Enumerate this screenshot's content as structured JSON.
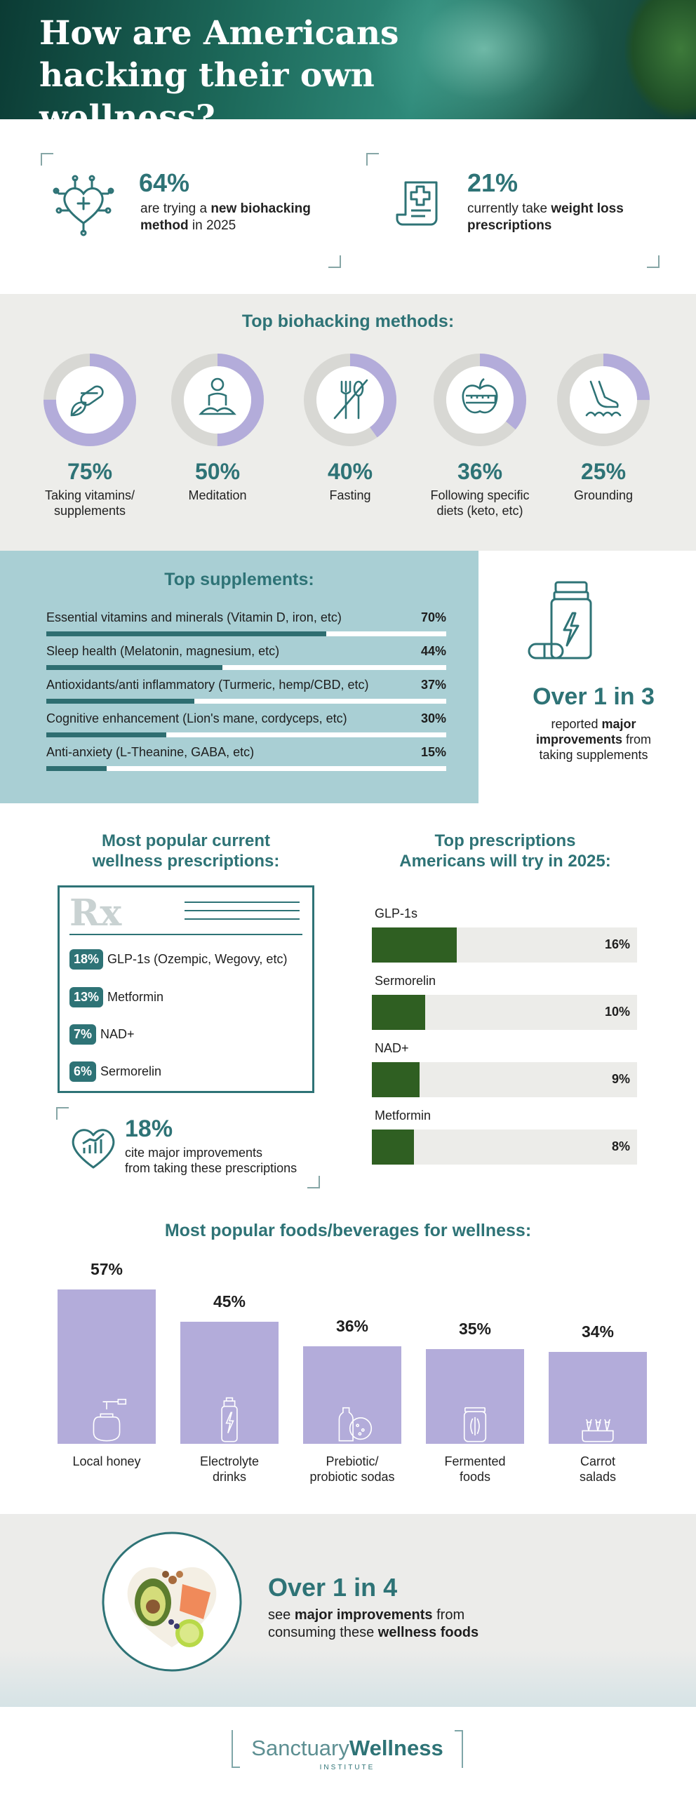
{
  "hero": {
    "title": "How are Americans hacking their own wellness?"
  },
  "top_stats": [
    {
      "value": "64%",
      "text_pre": "are trying a ",
      "text_bold": "new biohacking method",
      "text_post": " in 2025",
      "icon": "heart-circuit-icon"
    },
    {
      "value": "21%",
      "text_pre": "currently take ",
      "text_bold": "weight loss prescriptions",
      "text_post": "",
      "icon": "prescription-scroll-icon"
    }
  ],
  "methods": {
    "title": "Top biohacking methods:",
    "items": [
      {
        "value": "75%",
        "label": "Taking vitamins/ supplements",
        "icon": "pill-leaf-icon"
      },
      {
        "value": "50%",
        "label": "Meditation",
        "icon": "meditation-icon"
      },
      {
        "value": "40%",
        "label": "Fasting",
        "icon": "fork-spoon-crossed-icon"
      },
      {
        "value": "36%",
        "label": "Following specific diets (keto, etc)",
        "icon": "apple-tape-icon"
      },
      {
        "value": "25%",
        "label": "Grounding",
        "icon": "foot-grass-icon"
      }
    ]
  },
  "supplements": {
    "title": "Top supplements:",
    "items": [
      {
        "label": "Essential vitamins and minerals (Vitamin D, iron, etc)",
        "value": "70%"
      },
      {
        "label": "Sleep health (Melatonin, magnesium, etc)",
        "value": "44%"
      },
      {
        "label": "Antioxidants/anti inflammatory (Turmeric, hemp/CBD, etc)",
        "value": "37%"
      },
      {
        "label": "Cognitive enhancement (Lion's mane, cordyceps, etc)",
        "value": "30%"
      },
      {
        "label": "Anti-anxiety (L-Theanine, GABA, etc)",
        "value": "15%"
      }
    ],
    "callout": {
      "headline": "Over 1 in 3",
      "text_pre": "reported ",
      "text_bold": "major improvements",
      "text_post": " from taking supplements"
    }
  },
  "current_rx": {
    "title_line1": "Most popular current",
    "title_line2": "wellness prescriptions:",
    "rx_symbol": "Rx",
    "items": [
      {
        "value": "18%",
        "label": "GLP-1s (Ozempic, Wegovy, etc)"
      },
      {
        "value": "13%",
        "label": "Metformin"
      },
      {
        "value": "7%",
        "label": "NAD+"
      },
      {
        "value": "6%",
        "label": "Sermorelin"
      }
    ],
    "callout": {
      "value": "18%",
      "line1": "cite major improvements",
      "line2": "from taking these prescriptions"
    }
  },
  "try_rx": {
    "title_line1": "Top prescriptions",
    "title_line2": "Americans will try in 2025:",
    "items": [
      {
        "label": "GLP-1s",
        "value": "16%"
      },
      {
        "label": "Sermorelin",
        "value": "10%"
      },
      {
        "label": "NAD+",
        "value": "9%"
      },
      {
        "label": "Metformin",
        "value": "8%"
      }
    ]
  },
  "foods": {
    "title": "Most popular foods/beverages for wellness:",
    "items": [
      {
        "value": "57%",
        "label_line1": "Local honey",
        "label_line2": "",
        "icon": "honey-jar-icon"
      },
      {
        "value": "45%",
        "label_line1": "Electrolyte",
        "label_line2": "drinks",
        "icon": "sports-bottle-icon"
      },
      {
        "value": "36%",
        "label_line1": "Prebiotic/",
        "label_line2": "probiotic sodas",
        "icon": "soda-bottle-icon"
      },
      {
        "value": "35%",
        "label_line1": "Fermented",
        "label_line2": "foods",
        "icon": "fermented-jar-icon"
      },
      {
        "value": "34%",
        "label_line1": "Carrot",
        "label_line2": "salads",
        "icon": "carrot-bowl-icon"
      }
    ]
  },
  "bottom": {
    "headline": "Over 1 in 4",
    "text_pre": "see ",
    "text_bold1": "major improvements",
    "text_mid": " from consuming these ",
    "text_bold2": "wellness foods"
  },
  "logo": {
    "light": "Sanctuary",
    "bold": "Wellness",
    "sub": "INSTITUTE"
  },
  "chart_data": [
    {
      "type": "pie",
      "title": "Top biohacking methods:",
      "categories": [
        "Taking vitamins/ supplements",
        "Meditation",
        "Fasting",
        "Following specific diets (keto, etc)",
        "Grounding"
      ],
      "values": [
        75,
        50,
        40,
        36,
        25
      ]
    },
    {
      "type": "bar",
      "title": "Top supplements:",
      "categories": [
        "Essential vitamins and minerals (Vitamin D, iron, etc)",
        "Sleep health (Melatonin, magnesium, etc)",
        "Antioxidants/anti inflammatory (Turmeric, hemp/CBD, etc)",
        "Cognitive enhancement (Lion's mane, cordyceps, etc)",
        "Anti-anxiety (L-Theanine, GABA, etc)"
      ],
      "values": [
        70,
        44,
        37,
        30,
        15
      ],
      "ylim": [
        0,
        100
      ]
    },
    {
      "type": "table",
      "title": "Most popular current wellness prescriptions:",
      "categories": [
        "GLP-1s (Ozempic, Wegovy, etc)",
        "Metformin",
        "NAD+",
        "Sermorelin"
      ],
      "values": [
        18,
        13,
        7,
        6
      ]
    },
    {
      "type": "bar",
      "title": "Top prescriptions Americans will try in 2025:",
      "categories": [
        "GLP-1s",
        "Sermorelin",
        "NAD+",
        "Metformin"
      ],
      "values": [
        16,
        10,
        9,
        8
      ],
      "ylim": [
        0,
        50
      ]
    },
    {
      "type": "bar",
      "title": "Most popular foods/beverages for wellness:",
      "categories": [
        "Local honey",
        "Electrolyte drinks",
        "Prebiotic/ probiotic sodas",
        "Fermented foods",
        "Carrot salads"
      ],
      "values": [
        57,
        45,
        36,
        35,
        34
      ],
      "ylim": [
        0,
        60
      ]
    }
  ],
  "colors": {
    "teal": "#2e7376",
    "lavender": "#b3acda",
    "ring_track": "#d8d8d4",
    "supp_bg": "#a9cfd4",
    "rx_green": "#2f5f22",
    "gray_bg": "#ededea"
  }
}
